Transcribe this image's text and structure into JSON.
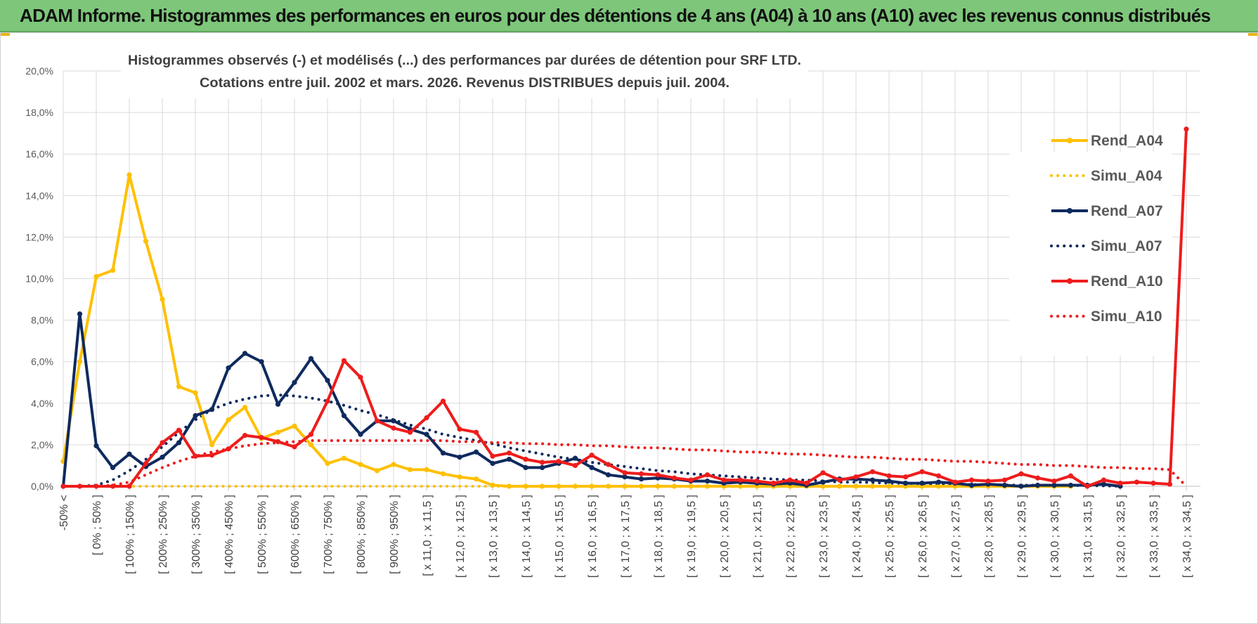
{
  "banner": {
    "title": "ADAM Informe. Histogrammes des performances en euros pour des détentions de 4 ans (A04) à 10 ans (A10) avec les revenus connus distribués",
    "background": "#7dc67a"
  },
  "chart_data": {
    "type": "line",
    "title_line1": "Histogrammes observés (-) et modélisés (...) des performances par durées de détention pour SRF LTD.",
    "title_line2": "Cotations entre juil. 2002 et mars. 2026.  Revenus DISTRIBUES depuis juil. 2004.",
    "ylim": [
      0,
      20
    ],
    "yticks": [
      "0,0%",
      "2,0%",
      "4,0%",
      "6,0%",
      "8,0%",
      "10,0%",
      "12,0%",
      "14,0%",
      "16,0%",
      "18,0%",
      "20,0%"
    ],
    "categories_labeled": [
      "-50% <",
      "[ 0% ; 50% ]",
      "[ 100% ; 150% ]",
      "[ 200% ; 250% ]",
      "[ 300% ; 350% ]",
      "[ 400% ; 450% ]",
      "[ 500% ; 550% ]",
      "[ 600% ; 650% ]",
      "[ 700% ; 750% ]",
      "[ 800% ; 850% ]",
      "[ 900% ; 950% ]",
      "[ x 11,0 ; x 11,5 ]",
      "[ x 12,0 ; x 12,5 ]",
      "[ x 13,0 ; x 13,5 ]",
      "[ x 14,0 ; x 14,5 ]",
      "[ x 15,0 ; x 15,5 ]",
      "[ x 16,0 ; x 16,5 ]",
      "[ x 17,0 ; x 17,5 ]",
      "[ x 18,0 ; x 18,5 ]",
      "[ x 19,0 ; x 19,5 ]",
      "[ x 20,0 ; x 20,5 ]",
      "[ x 21,0 ; x 21,5 ]",
      "[ x 22,0 ; x 22,5 ]",
      "[ x 23,0 ; x 23,5 ]",
      "[ x 24,0 ; x 24,5 ]",
      "[ x 25,0 ; x 25,5 ]",
      "[ x 26,0 ; x 26,5 ]",
      "[ x 27,0 ; x 27,5 ]",
      "[ x 28,0 ; x 28,5 ]",
      "[ x 29,0 ; x 29,5 ]",
      "[ x 30,0 ; x 30,5 ]",
      "[ x 31,0 ; x 31,5 ]",
      "[ x 32,0 ; x 32,5 ]",
      "[ x 33,0 ; x 33,5 ]",
      "[ x 34,0 ; x 34,5 ]"
    ],
    "label_every": 2,
    "series": [
      {
        "name": "Rend_A04",
        "style": "solid",
        "color": "#ffc000",
        "values": [
          1.2,
          6.0,
          10.1,
          10.4,
          15.0,
          11.8,
          9.0,
          4.8,
          4.5,
          2.0,
          3.2,
          3.8,
          2.3,
          2.6,
          2.9,
          2.0,
          1.1,
          1.35,
          1.05,
          0.75,
          1.05,
          0.8,
          0.8,
          0.6,
          0.45,
          0.35,
          0.05,
          0,
          0,
          0,
          0,
          0,
          0,
          0,
          0,
          0,
          0,
          0,
          0,
          0,
          0,
          0,
          0,
          0,
          0,
          0,
          0,
          0,
          0,
          0,
          0,
          0,
          0,
          0,
          0,
          0,
          0,
          0,
          0,
          0,
          0,
          0
        ]
      },
      {
        "name": "Simu_A04",
        "style": "dotted",
        "color": "#ffc000",
        "values": [
          0,
          0,
          0,
          0,
          0,
          0,
          0,
          0,
          0,
          0,
          0,
          0,
          0,
          0,
          0,
          0,
          0,
          0,
          0,
          0,
          0,
          0,
          0,
          0,
          0,
          0,
          0,
          0,
          0,
          0,
          0,
          0,
          0,
          0,
          0,
          0,
          0,
          0,
          0,
          0,
          0,
          0,
          0,
          0,
          0,
          0,
          0,
          0,
          0,
          0,
          0,
          0,
          0,
          0,
          0,
          0,
          0,
          0,
          0,
          0,
          0,
          0
        ]
      },
      {
        "name": "Rend_A07",
        "style": "solid",
        "color": "#0e2a5e",
        "values": [
          0,
          8.3,
          1.95,
          0.9,
          1.55,
          0.95,
          1.4,
          2.1,
          3.4,
          3.7,
          5.7,
          6.4,
          6.0,
          3.95,
          5.0,
          6.15,
          5.1,
          3.4,
          2.5,
          3.15,
          3.15,
          2.75,
          2.5,
          1.6,
          1.4,
          1.65,
          1.1,
          1.3,
          0.9,
          0.9,
          1.1,
          1.35,
          0.9,
          0.55,
          0.45,
          0.35,
          0.4,
          0.35,
          0.25,
          0.25,
          0.15,
          0.2,
          0.15,
          0.1,
          0.15,
          0.05,
          0.2,
          0.35,
          0.35,
          0.3,
          0.25,
          0.15,
          0.15,
          0.2,
          0.15,
          0.05,
          0.1,
          0.05,
          0,
          0.05,
          0.05,
          0.05,
          0.05,
          0.1,
          0
        ]
      },
      {
        "name": "Simu_A07",
        "style": "dotted",
        "color": "#0e2a5e",
        "values": [
          0,
          0,
          0.05,
          0.3,
          0.75,
          1.3,
          1.9,
          2.6,
          3.2,
          3.7,
          4.0,
          4.2,
          4.35,
          4.4,
          4.35,
          4.25,
          4.1,
          3.9,
          3.65,
          3.45,
          3.2,
          2.95,
          2.75,
          2.5,
          2.35,
          2.2,
          2.05,
          1.85,
          1.7,
          1.55,
          1.4,
          1.3,
          1.15,
          1.05,
          0.95,
          0.85,
          0.75,
          0.7,
          0.6,
          0.55,
          0.5,
          0.45,
          0.4,
          0.35,
          0.3,
          0.3,
          0.25,
          0.2,
          0.2,
          0.18,
          0.15,
          0.15,
          0.12,
          0.1,
          0.1,
          0.08,
          0.08,
          0.06,
          0.05,
          0.05,
          0.04,
          0.04,
          0.03,
          0.02,
          0
        ]
      },
      {
        "name": "Rend_A10",
        "style": "solid",
        "color": "#ee1c1c",
        "values": [
          0,
          0,
          0,
          0,
          0,
          1.1,
          2.1,
          2.7,
          1.45,
          1.5,
          1.8,
          2.45,
          2.35,
          2.15,
          1.9,
          2.5,
          4.1,
          6.05,
          5.25,
          3.15,
          2.8,
          2.6,
          3.3,
          4.1,
          2.75,
          2.6,
          1.45,
          1.6,
          1.3,
          1.15,
          1.2,
          1.0,
          1.5,
          1.05,
          0.65,
          0.6,
          0.55,
          0.4,
          0.3,
          0.55,
          0.3,
          0.3,
          0.25,
          0.15,
          0.3,
          0.15,
          0.65,
          0.3,
          0.45,
          0.7,
          0.5,
          0.45,
          0.7,
          0.5,
          0.2,
          0.3,
          0.25,
          0.3,
          0.6,
          0.4,
          0.25,
          0.5,
          0,
          0.3,
          0.15,
          0.2,
          0.15,
          0.1,
          17.2
        ]
      },
      {
        "name": "Simu_A10",
        "style": "dotted",
        "color": "#ee1c1c",
        "values": [
          0,
          0,
          0,
          0.05,
          0.2,
          0.55,
          0.9,
          1.2,
          1.45,
          1.65,
          1.8,
          1.95,
          2.05,
          2.1,
          2.15,
          2.2,
          2.2,
          2.2,
          2.2,
          2.2,
          2.2,
          2.2,
          2.2,
          2.2,
          2.15,
          2.15,
          2.1,
          2.1,
          2.05,
          2.05,
          2.0,
          2.0,
          1.95,
          1.95,
          1.9,
          1.85,
          1.85,
          1.8,
          1.75,
          1.75,
          1.7,
          1.65,
          1.65,
          1.6,
          1.55,
          1.55,
          1.5,
          1.45,
          1.4,
          1.4,
          1.35,
          1.3,
          1.3,
          1.25,
          1.2,
          1.2,
          1.15,
          1.1,
          1.05,
          1.05,
          1.0,
          1.0,
          0.95,
          0.9,
          0.9,
          0.85,
          0.85,
          0.8,
          0
        ]
      }
    ],
    "legend": {
      "position": "right",
      "entries": [
        "Rend_A04",
        "Simu_A04",
        "Rend_A07",
        "Simu_A07",
        "Rend_A10",
        "Simu_A10"
      ]
    }
  }
}
